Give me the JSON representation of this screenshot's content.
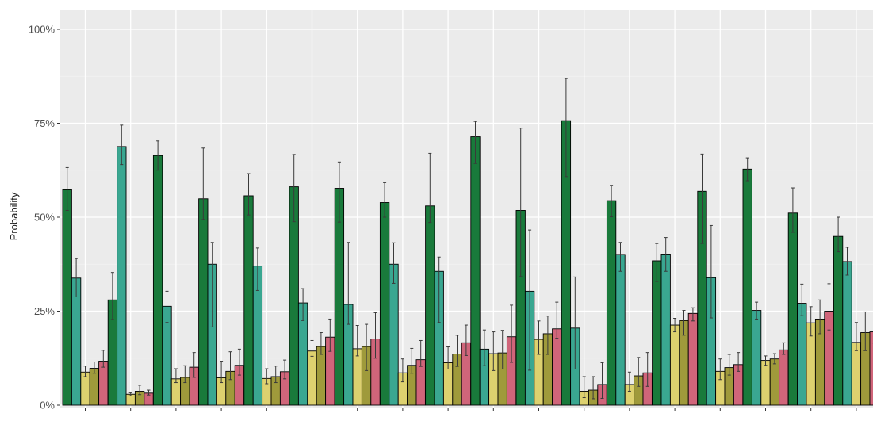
{
  "chart_data": {
    "type": "bar",
    "title": "",
    "xlabel": "",
    "ylabel": "Probability",
    "ylim": [
      0,
      1.05
    ],
    "yticks": [
      0,
      0.25,
      0.5,
      0.75,
      1.0
    ],
    "ytick_labels": [
      "0%",
      "25%",
      "50%",
      "75%",
      "100%"
    ],
    "grid": true,
    "legend": "none",
    "series_colors": [
      "#197a3b",
      "#3aa791",
      "#ddd16f",
      "#9f9a3b",
      "#d0657a"
    ],
    "groups": [
      {
        "values": [
          0.573,
          0.338,
          0.088,
          0.098,
          0.117
        ],
        "error_low": [
          0.518,
          0.288,
          0.076,
          0.085,
          0.101
        ],
        "error_high": [
          0.632,
          0.39,
          0.104,
          0.115,
          0.146
        ]
      },
      {
        "values": [
          0.28,
          0.688,
          0.029,
          0.037,
          0.032
        ],
        "error_low": [
          0.228,
          0.64,
          0.025,
          0.028,
          0.027
        ],
        "error_high": [
          0.353,
          0.745,
          0.033,
          0.053,
          0.04
        ]
      },
      {
        "values": [
          0.664,
          0.263,
          0.07,
          0.074,
          0.101
        ],
        "error_low": [
          0.625,
          0.22,
          0.06,
          0.06,
          0.074
        ],
        "error_high": [
          0.703,
          0.303,
          0.097,
          0.105,
          0.14
        ]
      },
      {
        "values": [
          0.549,
          0.375,
          0.073,
          0.09,
          0.106
        ],
        "error_low": [
          0.494,
          0.208,
          0.06,
          0.068,
          0.08
        ],
        "error_high": [
          0.684,
          0.433,
          0.117,
          0.142,
          0.149
        ]
      },
      {
        "values": [
          0.557,
          0.37,
          0.071,
          0.076,
          0.089
        ],
        "error_low": [
          0.506,
          0.305,
          0.057,
          0.06,
          0.07
        ],
        "error_high": [
          0.616,
          0.418,
          0.097,
          0.104,
          0.12
        ]
      },
      {
        "values": [
          0.581,
          0.272,
          0.144,
          0.156,
          0.181
        ],
        "error_low": [
          0.488,
          0.225,
          0.13,
          0.135,
          0.143
        ],
        "error_high": [
          0.667,
          0.31,
          0.172,
          0.193,
          0.229
        ]
      },
      {
        "values": [
          0.577,
          0.268,
          0.15,
          0.156,
          0.176
        ],
        "error_low": [
          0.487,
          0.215,
          0.131,
          0.092,
          0.125
        ],
        "error_high": [
          0.647,
          0.433,
          0.212,
          0.215,
          0.246
        ]
      },
      {
        "values": [
          0.539,
          0.375,
          0.086,
          0.106,
          0.121
        ],
        "error_low": [
          0.5,
          0.324,
          0.062,
          0.085,
          0.103
        ],
        "error_high": [
          0.592,
          0.432,
          0.123,
          0.151,
          0.172
        ]
      },
      {
        "values": [
          0.53,
          0.356,
          0.113,
          0.136,
          0.166
        ],
        "error_low": [
          0.486,
          0.22,
          0.096,
          0.103,
          0.132
        ],
        "error_high": [
          0.67,
          0.394,
          0.155,
          0.186,
          0.213
        ]
      },
      {
        "values": [
          0.714,
          0.149,
          0.137,
          0.139,
          0.182
        ],
        "error_low": [
          0.643,
          0.105,
          0.092,
          0.096,
          0.114
        ],
        "error_high": [
          0.755,
          0.2,
          0.195,
          0.199,
          0.266
        ]
      },
      {
        "values": [
          0.518,
          0.303,
          0.175,
          0.19,
          0.203
        ],
        "error_low": [
          0.342,
          0.093,
          0.135,
          0.135,
          0.178
        ],
        "error_high": [
          0.737,
          0.466,
          0.224,
          0.237,
          0.274
        ]
      },
      {
        "values": [
          0.757,
          0.205,
          0.037,
          0.04,
          0.055
        ],
        "error_low": [
          0.608,
          0.096,
          0.02,
          0.017,
          0.018
        ],
        "error_high": [
          0.869,
          0.341,
          0.076,
          0.076,
          0.113
        ]
      },
      {
        "values": [
          0.544,
          0.401,
          0.055,
          0.078,
          0.086
        ],
        "error_low": [
          0.501,
          0.356,
          0.037,
          0.05,
          0.05
        ],
        "error_high": [
          0.585,
          0.433,
          0.088,
          0.127,
          0.14
        ]
      },
      {
        "values": [
          0.384,
          0.402,
          0.213,
          0.225,
          0.244
        ],
        "error_low": [
          0.329,
          0.356,
          0.195,
          0.186,
          0.224
        ],
        "error_high": [
          0.43,
          0.446,
          0.231,
          0.252,
          0.259
        ]
      },
      {
        "values": [
          0.569,
          0.339,
          0.09,
          0.1,
          0.108
        ],
        "error_low": [
          0.43,
          0.232,
          0.068,
          0.08,
          0.09
        ],
        "error_high": [
          0.668,
          0.478,
          0.123,
          0.135,
          0.14
        ]
      },
      {
        "values": [
          0.628,
          0.252,
          0.119,
          0.123,
          0.147
        ],
        "error_low": [
          0.597,
          0.229,
          0.106,
          0.11,
          0.135
        ],
        "error_high": [
          0.658,
          0.274,
          0.131,
          0.137,
          0.166
        ]
      },
      {
        "values": [
          0.511,
          0.271,
          0.219,
          0.229,
          0.25
        ],
        "error_low": [
          0.46,
          0.238,
          0.184,
          0.19,
          0.2
        ],
        "error_high": [
          0.578,
          0.322,
          0.262,
          0.28,
          0.323
        ]
      },
      {
        "values": [
          0.449,
          0.382,
          0.167,
          0.193,
          0.195
        ],
        "error_low": [
          0.408,
          0.346,
          0.145,
          0.145,
          0.165
        ],
        "error_high": [
          0.5,
          0.42,
          0.22,
          0.248,
          0.248
        ]
      }
    ]
  }
}
